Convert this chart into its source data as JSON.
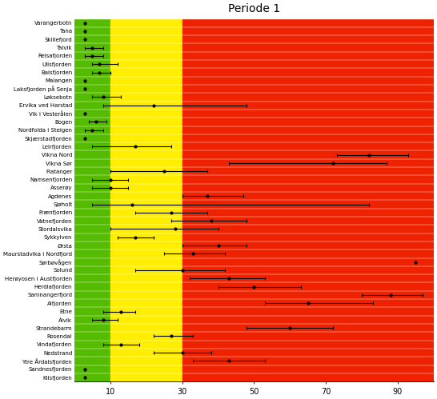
{
  "title": "Periode 1",
  "labels": [
    "Varangerbotn",
    "Tana",
    "Skillefjord",
    "Talvik",
    "Reisafjorden",
    "Ullsfjorden",
    "Balsfjorden",
    "Malangen",
    "Laksfjorden på Senja",
    "Løksebotn",
    "Ervika ved Harstad",
    "Vik i Vesterålen",
    "Bogen",
    "Nordfolda i Steigen",
    "Skjærstadfjorden",
    "Leirfjorden",
    "Vikna Nord",
    "Vikna Sør",
    "Flatanger",
    "Namsenfjorden",
    "Asserøy",
    "Agdenes",
    "Sjøholt",
    "Frænfjorden",
    "Vatnefjorden",
    "Stordalsvika",
    "Sykkylven",
    "Ørsta",
    "Maurstadvika i Nordfjord",
    "Sørbøvågen",
    "Solund",
    "Herøyosen i Austfjorden",
    "Herdlafjorden",
    "Samnangerfjord",
    "Alfjorden",
    "Etne",
    "Álvik",
    "Strandebarm",
    "Rosendal",
    "Vindafjorden",
    "Nedstrand",
    "Ytre Årdalsfjorden",
    "Sandnesfjorden",
    "Kilsfjorden"
  ],
  "centers": [
    3,
    3,
    3,
    5,
    5,
    7,
    7,
    3,
    3,
    8,
    22,
    3,
    6,
    5,
    3,
    17,
    82,
    72,
    25,
    10,
    10,
    37,
    16,
    27,
    38,
    28,
    17,
    40,
    33,
    95,
    30,
    43,
    50,
    88,
    65,
    13,
    8,
    60,
    27,
    13,
    30,
    43,
    3,
    3
  ],
  "lo": [
    3,
    3,
    3,
    3,
    3,
    5,
    5,
    3,
    3,
    5,
    8,
    3,
    4,
    3,
    3,
    5,
    73,
    43,
    10,
    5,
    5,
    30,
    5,
    17,
    27,
    10,
    12,
    30,
    25,
    95,
    17,
    32,
    40,
    80,
    53,
    8,
    5,
    48,
    22,
    8,
    22,
    33,
    3,
    3
  ],
  "hi": [
    3,
    3,
    3,
    8,
    8,
    12,
    10,
    3,
    3,
    13,
    48,
    3,
    9,
    8,
    3,
    27,
    93,
    87,
    37,
    15,
    15,
    47,
    82,
    37,
    48,
    40,
    22,
    48,
    42,
    95,
    42,
    53,
    63,
    97,
    83,
    17,
    12,
    72,
    33,
    18,
    38,
    53,
    3,
    3
  ],
  "bg_green": [
    0,
    10
  ],
  "bg_yellow": [
    10,
    30
  ],
  "bg_red": [
    30,
    100
  ],
  "xlim": [
    0,
    100
  ],
  "green_color": "#55BB00",
  "yellow_color": "#FFEE00",
  "red_color": "#EE2200",
  "xticklabels": [
    "10",
    "30",
    "50",
    "70",
    "90"
  ],
  "xticks": [
    10,
    30,
    50,
    70,
    90
  ],
  "figsize": [
    5.46,
    4.99
  ],
  "dpi": 100,
  "label_fontsize": 5.0,
  "title_fontsize": 10,
  "xtick_fontsize": 7,
  "marker_size": 2.0,
  "cap_size": 1.5,
  "elinewidth": 0.8,
  "capthick": 0.8
}
